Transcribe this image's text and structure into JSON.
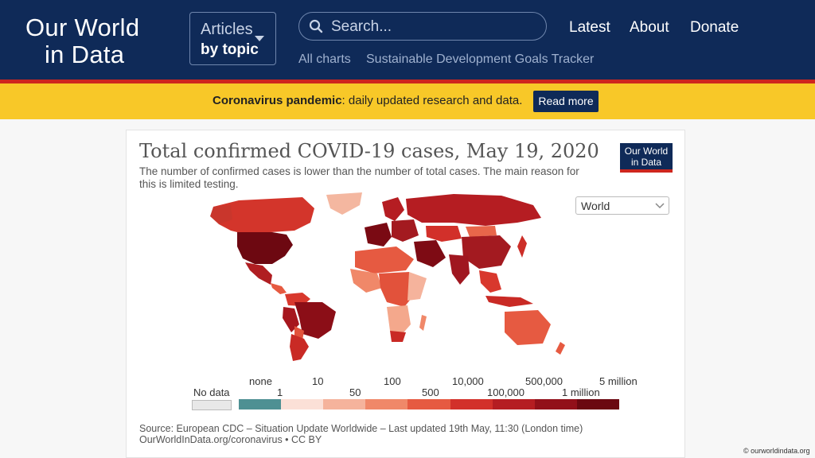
{
  "header": {
    "logo_line1": "Our World",
    "logo_line2": "in Data",
    "articles_line1": "Articles",
    "articles_line2": "by topic",
    "search_placeholder": "Search...",
    "nav": [
      "Latest",
      "About",
      "Donate"
    ],
    "subnav": [
      "All charts",
      "Sustainable Development Goals Tracker"
    ]
  },
  "banner": {
    "bold": "Coronavirus pandemic",
    "text": ": daily updated research and data.",
    "button": "Read more"
  },
  "chart": {
    "title": "Total confirmed COVID-19 cases, May 19, 2020",
    "subtitle": "The number of confirmed cases is lower than the number of total cases. The main reason for this is limited testing.",
    "badge_line1": "Our World",
    "badge_line2": "in Data",
    "region_select": "World",
    "no_data_label": "No data",
    "legend_top": [
      "none",
      "10",
      "100",
      "10,000",
      "500,000",
      "5 million"
    ],
    "legend_bottom": [
      "1",
      "50",
      "500",
      "100,000",
      "1 million"
    ],
    "legend_colors": [
      "#4e9093",
      "#fbe0d7",
      "#f5b39c",
      "#f08869",
      "#e65a41",
      "#d2302a",
      "#b51d22",
      "#92101a",
      "#6b0811"
    ],
    "source_line1": "Source: European CDC – Situation Update Worldwide – Last updated 19th May, 11:30 (London time)",
    "source_line2": "OurWorldInData.org/coronavirus • CC BY"
  },
  "copyright": "© ourworldindata.org"
}
